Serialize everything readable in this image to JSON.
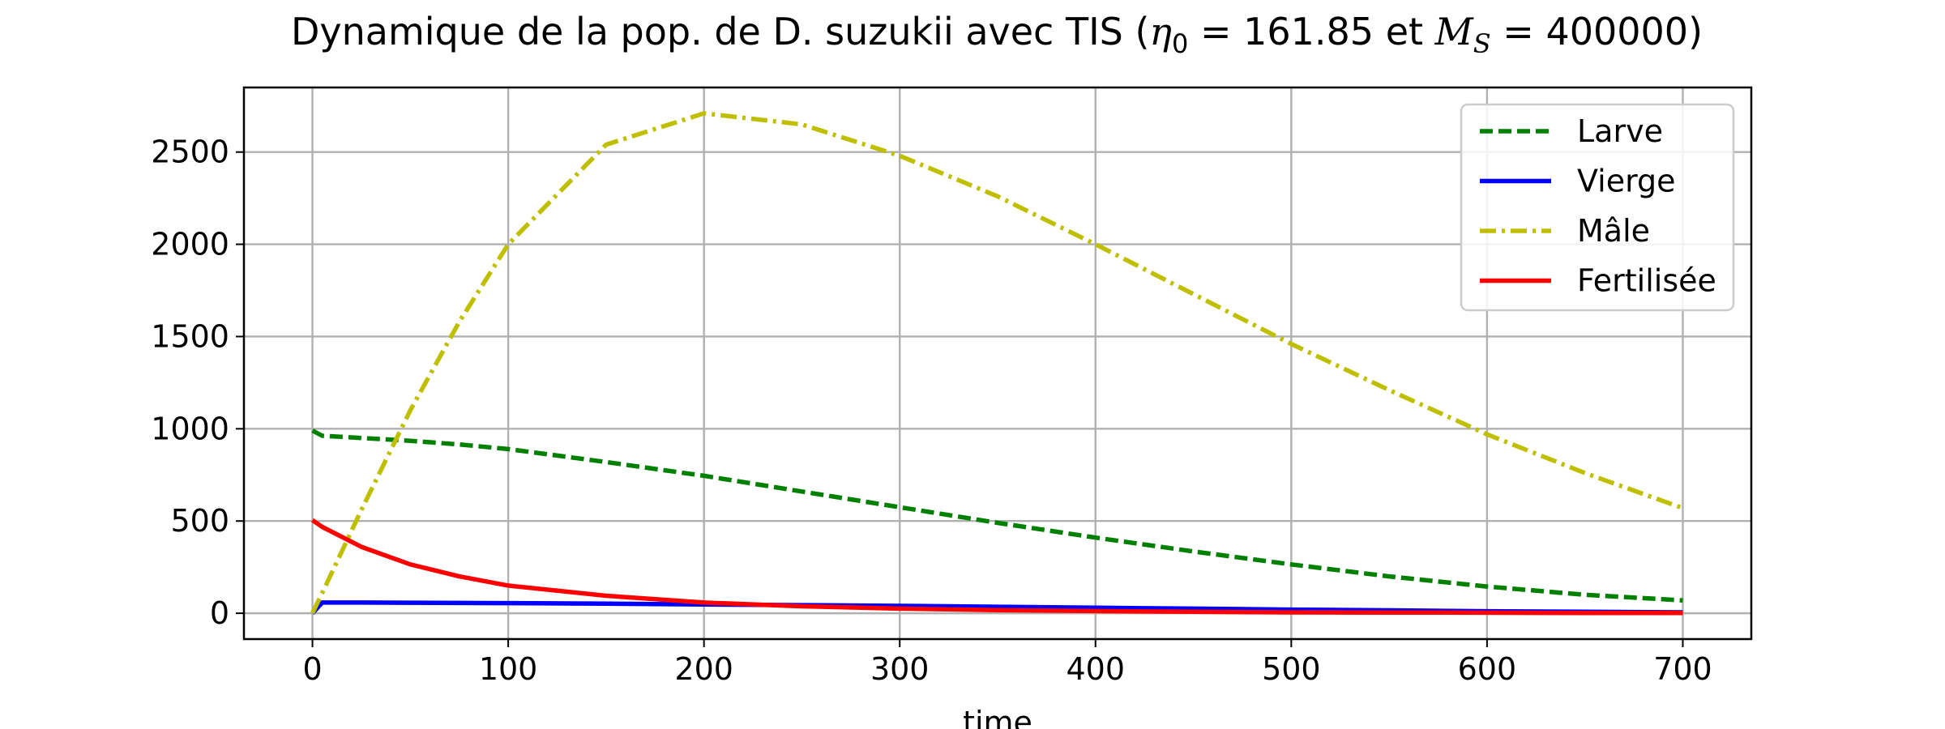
{
  "chart_data": {
    "type": "line",
    "title": {
      "prefix": "Dynamique de la pop. de D. suzukii avec TIS (",
      "eta_symbol": "η",
      "eta_subscript": "0",
      "eta_value": " = 161.85 et ",
      "ms_symbol": "M",
      "ms_subscript": "S",
      "ms_value": " = 400000)"
    },
    "xlabel": "time",
    "ylabel": "",
    "xlim": [
      -35,
      735
    ],
    "ylim": [
      -140,
      2850
    ],
    "xticks": [
      0,
      100,
      200,
      300,
      400,
      500,
      600,
      700
    ],
    "yticks": [
      0,
      500,
      1000,
      1500,
      2000,
      2500
    ],
    "grid": true,
    "legend_position": "top-right",
    "x": [
      0,
      5,
      25,
      50,
      75,
      100,
      150,
      200,
      250,
      300,
      350,
      400,
      450,
      500,
      550,
      600,
      650,
      700
    ],
    "series": [
      {
        "name": "Larve",
        "color": "#008000",
        "style": "dashed",
        "values": [
          990,
          962,
          950,
          935,
          915,
          890,
          820,
          745,
          660,
          575,
          490,
          410,
          335,
          265,
          200,
          145,
          100,
          70
        ]
      },
      {
        "name": "Vierge",
        "color": "#0000ff",
        "style": "solid",
        "values": [
          0,
          58,
          58,
          57,
          56,
          55,
          52,
          48,
          44,
          40,
          35,
          30,
          25,
          20,
          16,
          11,
          8,
          5
        ]
      },
      {
        "name": "Mâle",
        "color": "#bfbf00",
        "style": "dashdot",
        "values": [
          0,
          110,
          560,
          1100,
          1580,
          2000,
          2540,
          2710,
          2650,
          2480,
          2260,
          2000,
          1730,
          1460,
          1210,
          970,
          760,
          570
        ]
      },
      {
        "name": "Fertilisée",
        "color": "#ff0000",
        "style": "solid",
        "values": [
          505,
          468,
          360,
          265,
          200,
          150,
          95,
          58,
          38,
          25,
          17,
          12,
          8,
          5,
          4,
          3,
          2,
          2
        ]
      }
    ]
  }
}
